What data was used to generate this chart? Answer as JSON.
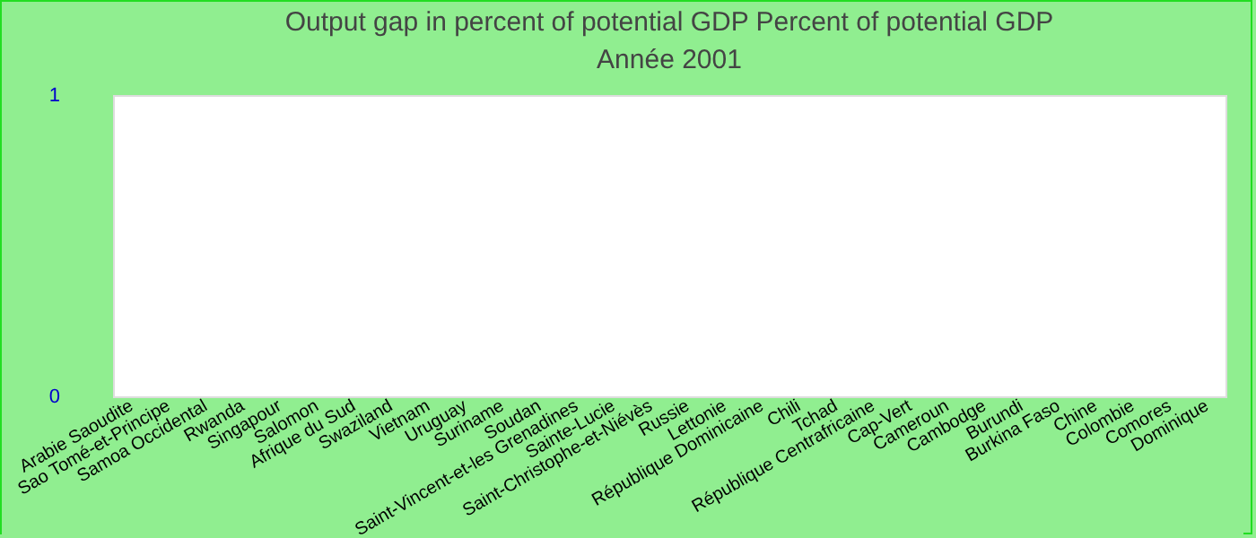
{
  "chart_data": {
    "type": "bar",
    "title": "Output gap in percent of potential GDP  Percent of potential GDP",
    "subtitle": "Année 2001",
    "categories": [
      "Arabie Saoudite",
      "Sao Tomé-et-Principe",
      "Samoa Occidental",
      "Rwanda",
      "Singapour",
      "Salomon",
      "Afrique du Sud",
      "Swaziland",
      "Vietnam",
      "Uruguay",
      "Suriname",
      "Soudan",
      "Saint-Vincent-et-les Grenadines",
      "Sainte-Lucie",
      "Saint-Christophe-et-Niévès",
      "Russie",
      "Lettonie",
      "République Dominicaine",
      "Chili",
      "Tchad",
      "République Centrafricaine",
      "Cap-Vert",
      "Cameroun",
      "Cambodge",
      "Burundi",
      "Burkina Faso",
      "Chine",
      "Colombie",
      "Comores",
      "Dominique"
    ],
    "values": [
      0,
      0,
      0,
      0,
      0,
      0,
      0,
      0,
      0,
      0,
      0,
      0,
      0,
      0,
      0,
      0,
      0,
      0,
      0,
      0,
      0,
      0,
      0,
      0,
      0,
      0,
      0,
      0,
      0,
      0
    ],
    "ylim": [
      0,
      1
    ],
    "yticks": [
      0,
      1
    ],
    "grid": false,
    "legend": false
  }
}
